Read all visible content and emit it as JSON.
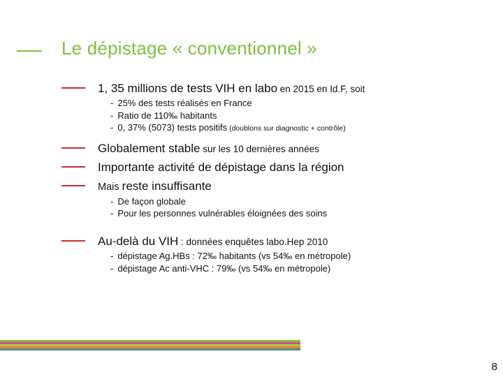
{
  "title": "Le dépistage « conventionnel »",
  "bullets": [
    {
      "main": "1, 35 millions de tests VIH en labo",
      "tail": " en 2015 en Id.F, soit",
      "subs": [
        "25% des tests réalisés en France",
        "Ratio de 110‰ habitants",
        "0, 37% (5073) tests positifs"
      ],
      "sub_extra_tiny": " (doublons sur diagnostic + contrôle)"
    },
    {
      "main": "Globalement stable",
      "tail": " sur les 10 dernières années"
    },
    {
      "main": "Importante activité de dépistage dans la région"
    },
    {
      "mais": "Mais ",
      "main": "reste insuffisante",
      "subs": [
        "De façon globale",
        "Pour les personnes vulnérables éloignées des soins"
      ]
    },
    {
      "main": "Au-delà du VIH",
      "tail": " : données enquêtes labo.Hep 2010",
      "subs": [
        "dépistage Ag.HBs : 72‰ habitants (vs 54‰ en métropole)",
        "dépistage Ac anti-VHC : 79‰ (vs 54‰ en métropole)"
      ]
    }
  ],
  "stripe_colors": [
    "#7fbf3f",
    "#d24f8a",
    "#a6c94f",
    "#e7842e",
    "#4c8f8f"
  ],
  "page_number": "8",
  "colors": {
    "title_green": "#7fbf3f",
    "bullet_red": "#c62e2e",
    "text": "#111111",
    "background": "#ffffff"
  }
}
